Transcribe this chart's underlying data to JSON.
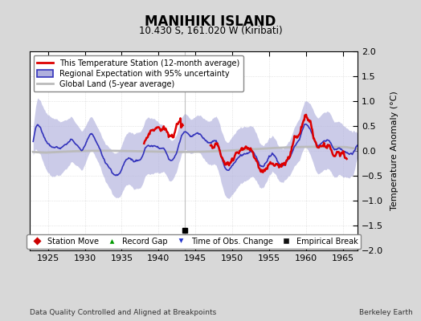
{
  "title": "MANIHIKI ISLAND",
  "subtitle": "10.430 S, 161.020 W (Kiribati)",
  "ylabel": "Temperature Anomaly (°C)",
  "xlabel_left": "Data Quality Controlled and Aligned at Breakpoints",
  "xlabel_right": "Berkeley Earth",
  "xlim": [
    1922.5,
    1967.0
  ],
  "ylim": [
    -2,
    2
  ],
  "yticks": [
    -2,
    -1.5,
    -1,
    -0.5,
    0,
    0.5,
    1,
    1.5,
    2
  ],
  "xticks": [
    1925,
    1930,
    1935,
    1940,
    1945,
    1950,
    1955,
    1960,
    1965
  ],
  "red_color": "#dd0000",
  "blue_color": "#3333bb",
  "gray_color": "#bbbbbb",
  "fill_color": "#b0b0dd",
  "bg_color": "#d8d8d8",
  "plot_bg_color": "#ffffff",
  "empirical_break_x": 1943.5,
  "legend_labels": [
    "This Temperature Station (12-month average)",
    "Regional Expectation with 95% uncertainty",
    "Global Land (5-year average)"
  ],
  "bottom_legend_labels": [
    "Station Move",
    "Record Gap",
    "Time of Obs. Change",
    "Empirical Break"
  ],
  "bottom_legend_colors": [
    "#cc0000",
    "#009900",
    "#2233cc",
    "#111111"
  ],
  "bottom_legend_markers": [
    "D",
    "^",
    "v",
    "s"
  ]
}
